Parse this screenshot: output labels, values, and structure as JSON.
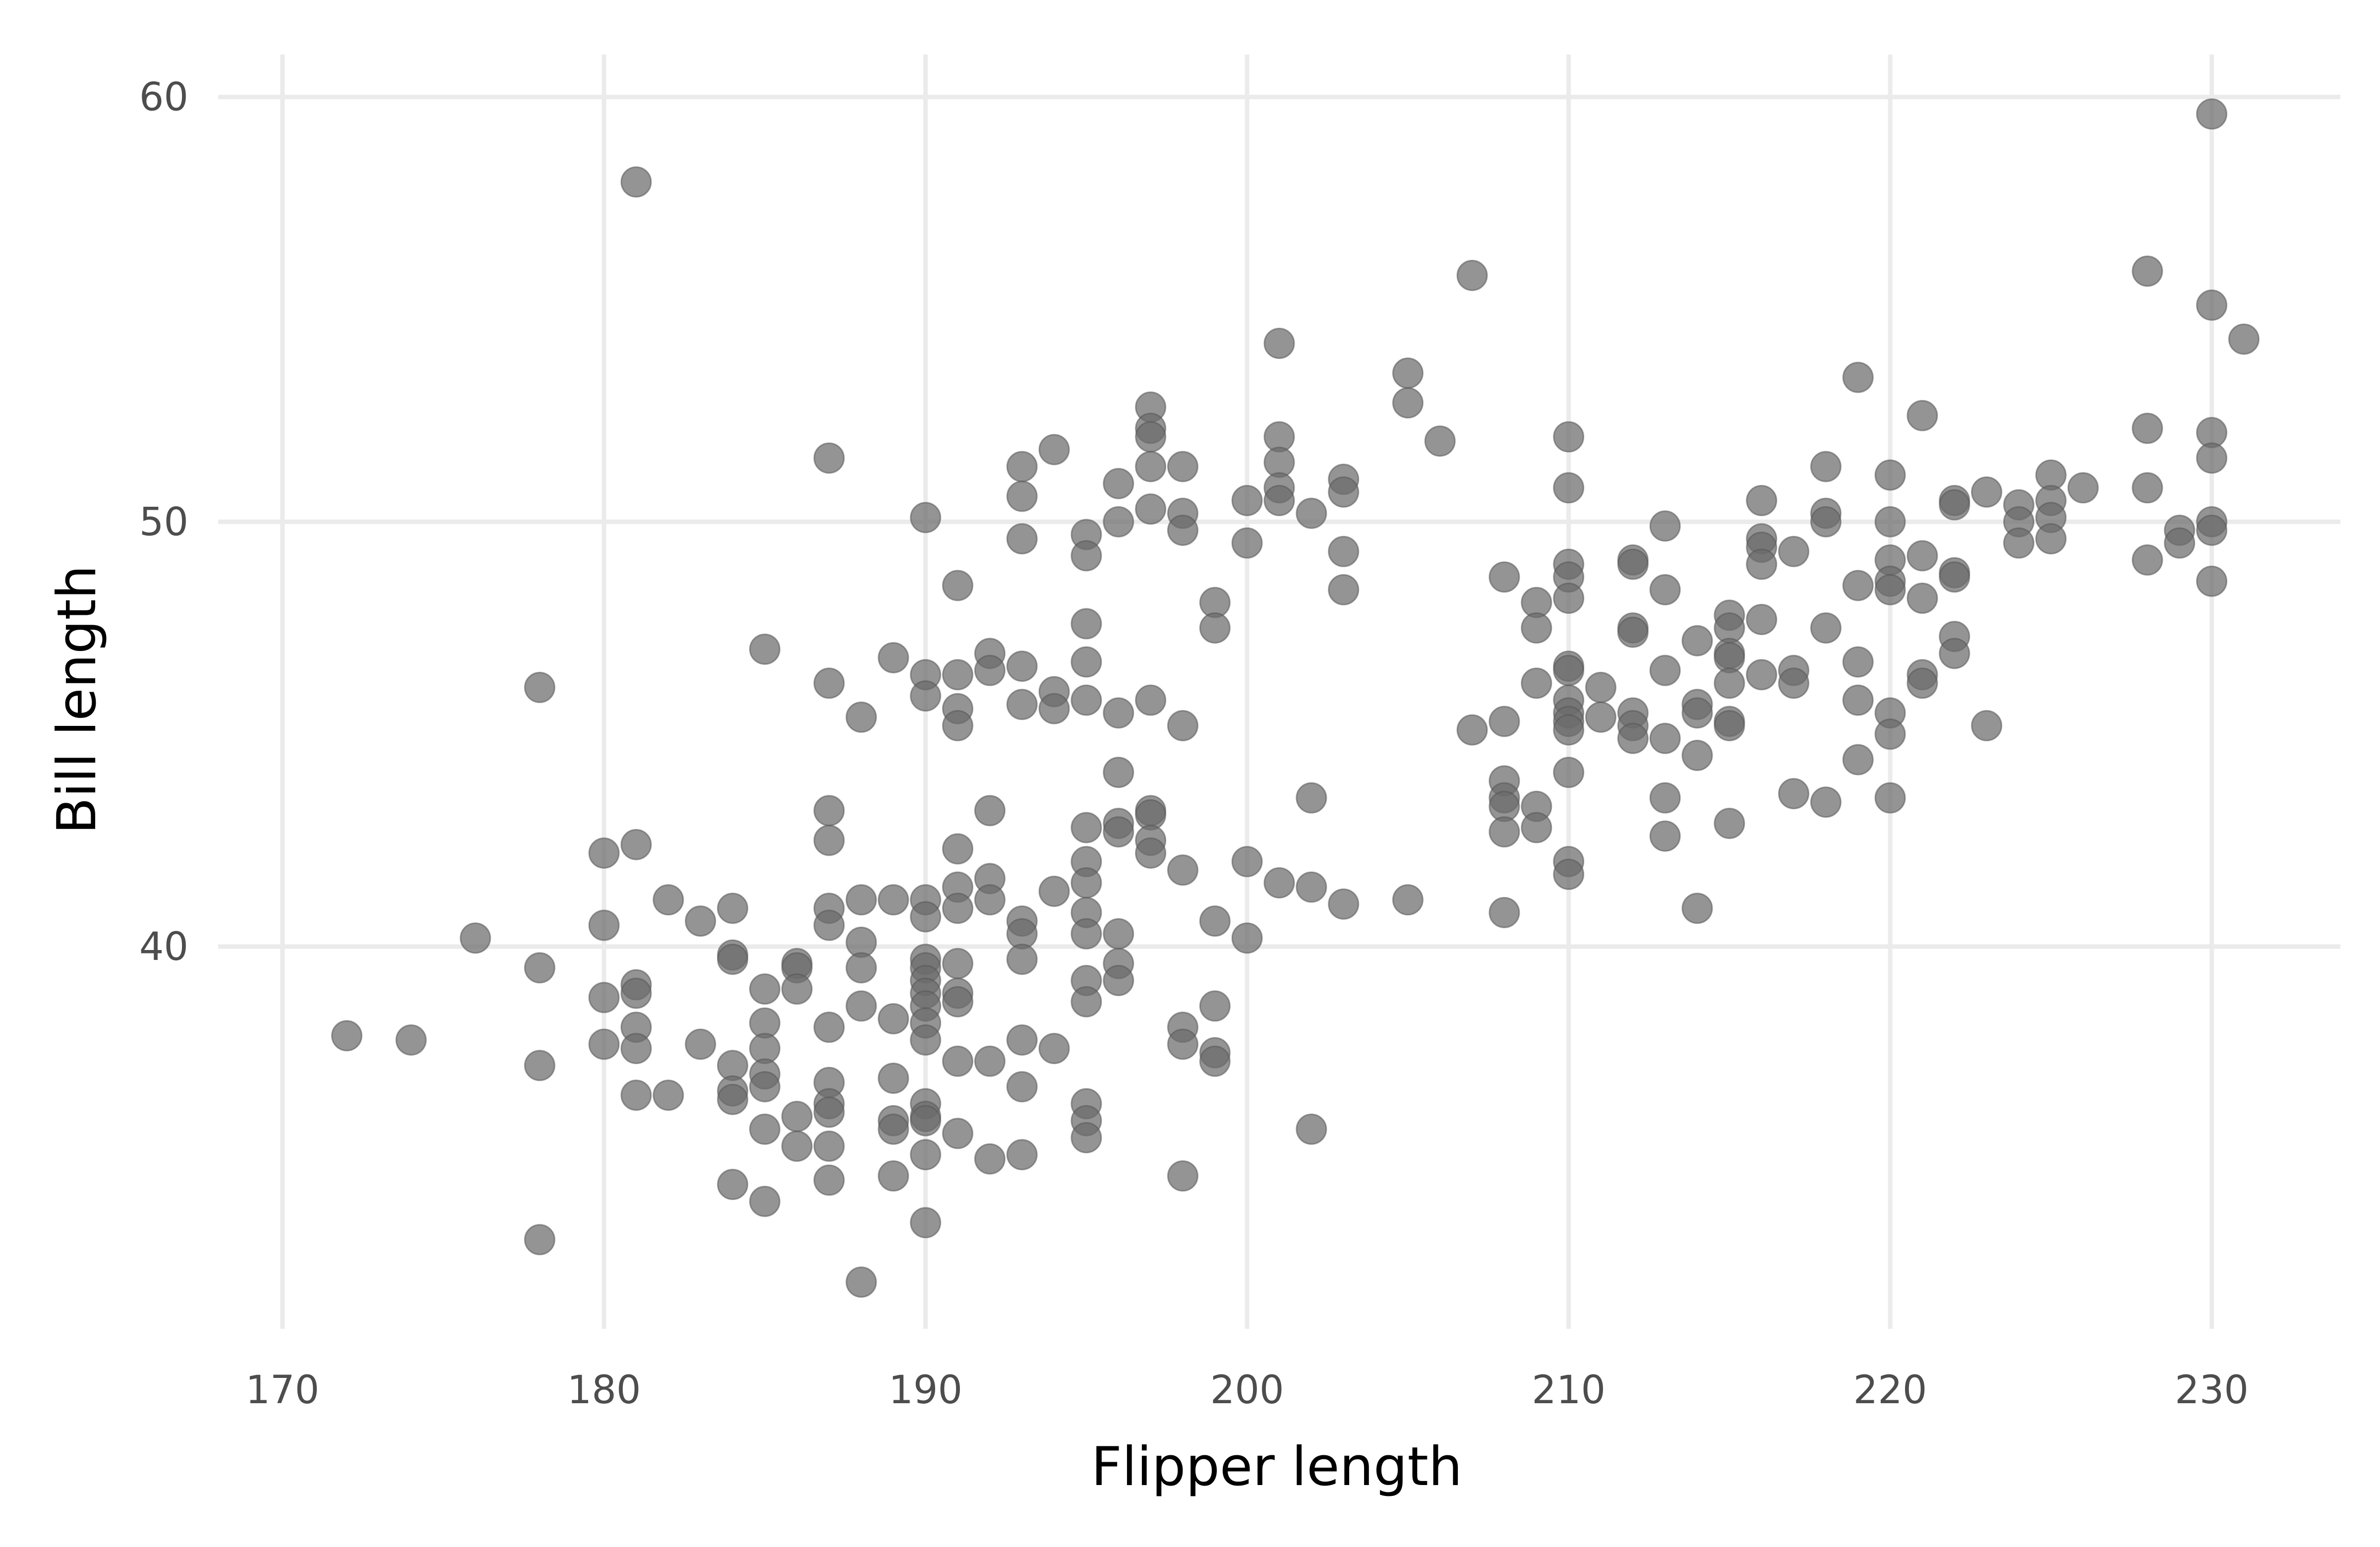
{
  "chart_data": {
    "type": "scatter",
    "title": "",
    "xlabel": "Flipper length",
    "ylabel": "Bill length",
    "xlim": [
      168,
      234
    ],
    "ylim": [
      31,
      61
    ],
    "x_ticks": [
      170,
      180,
      190,
      200,
      210,
      220,
      230
    ],
    "y_ticks": [
      40,
      50,
      60
    ],
    "grid": true,
    "legend": "none",
    "colors": {
      "point": "#6b6b6b",
      "grid": "#ebebeb",
      "background": "#ffffff"
    },
    "points": [
      [
        172,
        37.9
      ],
      [
        174,
        37.8
      ],
      [
        176,
        40.2
      ],
      [
        178,
        46.1
      ],
      [
        178,
        39.5
      ],
      [
        178,
        37.2
      ],
      [
        178,
        33.1
      ],
      [
        180,
        42.2
      ],
      [
        180,
        40.5
      ],
      [
        180,
        38.8
      ],
      [
        180,
        37.7
      ],
      [
        181,
        58.0
      ],
      [
        181,
        42.4
      ],
      [
        181,
        39.1
      ],
      [
        181,
        38.9
      ],
      [
        181,
        38.1
      ],
      [
        181,
        37.6
      ],
      [
        181,
        36.5
      ],
      [
        182,
        41.1
      ],
      [
        182,
        36.5
      ],
      [
        183,
        40.6
      ],
      [
        183,
        37.7
      ],
      [
        184,
        40.9
      ],
      [
        184,
        39.8
      ],
      [
        184,
        39.7
      ],
      [
        184,
        37.2
      ],
      [
        184,
        36.6
      ],
      [
        184,
        36.4
      ],
      [
        184,
        34.4
      ],
      [
        185,
        47.0
      ],
      [
        185,
        39.0
      ],
      [
        185,
        38.2
      ],
      [
        185,
        37.6
      ],
      [
        185,
        37.0
      ],
      [
        185,
        36.7
      ],
      [
        185,
        35.7
      ],
      [
        185,
        34.0
      ],
      [
        186,
        39.6
      ],
      [
        186,
        39.5
      ],
      [
        186,
        39.0
      ],
      [
        186,
        36.0
      ],
      [
        186,
        35.3
      ],
      [
        187,
        51.5
      ],
      [
        187,
        46.2
      ],
      [
        187,
        43.2
      ],
      [
        187,
        42.5
      ],
      [
        187,
        40.9
      ],
      [
        187,
        40.5
      ],
      [
        187,
        38.1
      ],
      [
        187,
        36.8
      ],
      [
        187,
        36.3
      ],
      [
        187,
        36.1
      ],
      [
        187,
        35.3
      ],
      [
        187,
        34.5
      ],
      [
        188,
        45.4
      ],
      [
        188,
        41.1
      ],
      [
        188,
        40.1
      ],
      [
        188,
        39.5
      ],
      [
        188,
        38.6
      ],
      [
        188,
        32.1
      ],
      [
        189,
        46.8
      ],
      [
        189,
        41.1
      ],
      [
        189,
        38.3
      ],
      [
        189,
        36.9
      ],
      [
        189,
        35.9
      ],
      [
        189,
        35.7
      ],
      [
        189,
        34.6
      ],
      [
        190,
        50.1
      ],
      [
        190,
        46.4
      ],
      [
        190,
        45.9
      ],
      [
        190,
        41.1
      ],
      [
        190,
        40.7
      ],
      [
        190,
        39.7
      ],
      [
        190,
        39.5
      ],
      [
        190,
        39.2
      ],
      [
        190,
        38.9
      ],
      [
        190,
        38.6
      ],
      [
        190,
        38.2
      ],
      [
        190,
        37.8
      ],
      [
        190,
        36.3
      ],
      [
        190,
        36.0
      ],
      [
        190,
        35.9
      ],
      [
        190,
        35.1
      ],
      [
        190,
        33.5
      ],
      [
        191,
        48.5
      ],
      [
        191,
        46.4
      ],
      [
        191,
        45.6
      ],
      [
        191,
        45.2
      ],
      [
        191,
        42.3
      ],
      [
        191,
        41.4
      ],
      [
        191,
        40.9
      ],
      [
        191,
        39.6
      ],
      [
        191,
        38.9
      ],
      [
        191,
        38.7
      ],
      [
        191,
        37.3
      ],
      [
        191,
        35.6
      ],
      [
        192,
        46.9
      ],
      [
        192,
        46.5
      ],
      [
        192,
        43.2
      ],
      [
        192,
        41.6
      ],
      [
        192,
        41.1
      ],
      [
        192,
        37.3
      ],
      [
        192,
        35.0
      ],
      [
        193,
        51.3
      ],
      [
        193,
        50.6
      ],
      [
        193,
        49.6
      ],
      [
        193,
        46.6
      ],
      [
        193,
        45.7
      ],
      [
        193,
        40.6
      ],
      [
        193,
        40.3
      ],
      [
        193,
        39.7
      ],
      [
        193,
        37.8
      ],
      [
        193,
        36.7
      ],
      [
        193,
        35.1
      ],
      [
        194,
        51.7
      ],
      [
        194,
        46.0
      ],
      [
        194,
        45.6
      ],
      [
        194,
        41.3
      ],
      [
        194,
        37.6
      ],
      [
        195,
        49.7
      ],
      [
        195,
        49.2
      ],
      [
        195,
        47.6
      ],
      [
        195,
        46.7
      ],
      [
        195,
        45.8
      ],
      [
        195,
        42.8
      ],
      [
        195,
        42.0
      ],
      [
        195,
        41.5
      ],
      [
        195,
        40.8
      ],
      [
        195,
        40.3
      ],
      [
        195,
        39.2
      ],
      [
        195,
        38.7
      ],
      [
        195,
        36.3
      ],
      [
        195,
        35.9
      ],
      [
        195,
        35.5
      ],
      [
        196,
        50.9
      ],
      [
        196,
        50.0
      ],
      [
        196,
        45.5
      ],
      [
        196,
        44.1
      ],
      [
        196,
        42.9
      ],
      [
        196,
        42.7
      ],
      [
        196,
        40.3
      ],
      [
        196,
        39.6
      ],
      [
        196,
        39.2
      ],
      [
        197,
        52.7
      ],
      [
        197,
        52.2
      ],
      [
        197,
        52.0
      ],
      [
        197,
        51.3
      ],
      [
        197,
        50.3
      ],
      [
        197,
        45.8
      ],
      [
        197,
        43.2
      ],
      [
        197,
        43.1
      ],
      [
        197,
        42.5
      ],
      [
        197,
        42.2
      ],
      [
        198,
        51.3
      ],
      [
        198,
        50.2
      ],
      [
        198,
        49.8
      ],
      [
        198,
        45.2
      ],
      [
        198,
        41.8
      ],
      [
        198,
        38.1
      ],
      [
        198,
        37.7
      ],
      [
        198,
        34.6
      ],
      [
        199,
        48.1
      ],
      [
        199,
        47.5
      ],
      [
        199,
        40.6
      ],
      [
        199,
        38.6
      ],
      [
        199,
        37.5
      ],
      [
        199,
        37.3
      ],
      [
        200,
        50.5
      ],
      [
        200,
        49.5
      ],
      [
        200,
        42.0
      ],
      [
        200,
        40.2
      ],
      [
        201,
        54.2
      ],
      [
        201,
        52.0
      ],
      [
        201,
        51.4
      ],
      [
        201,
        50.8
      ],
      [
        201,
        50.5
      ],
      [
        201,
        41.5
      ],
      [
        202,
        50.2
      ],
      [
        202,
        43.5
      ],
      [
        202,
        41.4
      ],
      [
        202,
        35.7
      ],
      [
        203,
        51.0
      ],
      [
        203,
        50.7
      ],
      [
        203,
        49.3
      ],
      [
        203,
        48.4
      ],
      [
        203,
        41.0
      ],
      [
        205,
        53.5
      ],
      [
        205,
        52.8
      ],
      [
        205,
        41.1
      ],
      [
        206,
        51.9
      ],
      [
        207,
        55.8
      ],
      [
        207,
        45.1
      ],
      [
        208,
        48.7
      ],
      [
        208,
        45.3
      ],
      [
        208,
        43.9
      ],
      [
        208,
        43.5
      ],
      [
        208,
        43.3
      ],
      [
        208,
        42.7
      ],
      [
        208,
        40.8
      ],
      [
        209,
        48.1
      ],
      [
        209,
        47.5
      ],
      [
        209,
        46.2
      ],
      [
        209,
        43.3
      ],
      [
        209,
        42.8
      ],
      [
        210,
        52.0
      ],
      [
        210,
        50.8
      ],
      [
        210,
        49.0
      ],
      [
        210,
        48.7
      ],
      [
        210,
        48.2
      ],
      [
        210,
        46.6
      ],
      [
        210,
        46.5
      ],
      [
        210,
        45.8
      ],
      [
        210,
        45.5
      ],
      [
        210,
        45.3
      ],
      [
        210,
        45.1
      ],
      [
        210,
        44.1
      ],
      [
        210,
        42.0
      ],
      [
        210,
        41.7
      ],
      [
        211,
        46.1
      ],
      [
        211,
        45.4
      ],
      [
        212,
        49.1
      ],
      [
        212,
        49.0
      ],
      [
        212,
        47.5
      ],
      [
        212,
        47.4
      ],
      [
        212,
        45.5
      ],
      [
        212,
        45.2
      ],
      [
        212,
        44.9
      ],
      [
        213,
        49.9
      ],
      [
        213,
        48.4
      ],
      [
        213,
        46.5
      ],
      [
        213,
        44.9
      ],
      [
        213,
        43.5
      ],
      [
        213,
        42.6
      ],
      [
        214,
        47.2
      ],
      [
        214,
        45.7
      ],
      [
        214,
        45.5
      ],
      [
        214,
        44.5
      ],
      [
        214,
        40.9
      ],
      [
        215,
        47.8
      ],
      [
        215,
        47.5
      ],
      [
        215,
        46.9
      ],
      [
        215,
        46.8
      ],
      [
        215,
        46.2
      ],
      [
        215,
        45.3
      ],
      [
        215,
        45.2
      ],
      [
        215,
        42.9
      ],
      [
        216,
        50.5
      ],
      [
        216,
        49.6
      ],
      [
        216,
        49.4
      ],
      [
        216,
        49.0
      ],
      [
        216,
        47.7
      ],
      [
        216,
        46.4
      ],
      [
        217,
        49.3
      ],
      [
        217,
        46.5
      ],
      [
        217,
        46.2
      ],
      [
        217,
        43.6
      ],
      [
        218,
        51.3
      ],
      [
        218,
        50.2
      ],
      [
        218,
        50.0
      ],
      [
        218,
        47.5
      ],
      [
        218,
        43.4
      ],
      [
        219,
        53.4
      ],
      [
        219,
        48.5
      ],
      [
        219,
        46.7
      ],
      [
        219,
        45.8
      ],
      [
        219,
        44.4
      ],
      [
        220,
        51.1
      ],
      [
        220,
        50.0
      ],
      [
        220,
        49.1
      ],
      [
        220,
        48.6
      ],
      [
        220,
        48.4
      ],
      [
        220,
        45.5
      ],
      [
        220,
        45.0
      ],
      [
        220,
        43.5
      ],
      [
        221,
        52.5
      ],
      [
        221,
        49.2
      ],
      [
        221,
        48.2
      ],
      [
        221,
        46.4
      ],
      [
        221,
        46.2
      ],
      [
        222,
        50.5
      ],
      [
        222,
        50.4
      ],
      [
        222,
        48.8
      ],
      [
        222,
        48.7
      ],
      [
        222,
        47.3
      ],
      [
        222,
        46.9
      ],
      [
        223,
        50.7
      ],
      [
        223,
        45.2
      ],
      [
        224,
        50.4
      ],
      [
        224,
        50.0
      ],
      [
        224,
        49.5
      ],
      [
        225,
        51.1
      ],
      [
        225,
        50.5
      ],
      [
        225,
        50.1
      ],
      [
        225,
        49.6
      ],
      [
        226,
        50.8
      ],
      [
        228,
        55.9
      ],
      [
        228,
        52.2
      ],
      [
        228,
        50.8
      ],
      [
        228,
        49.1
      ],
      [
        229,
        49.8
      ],
      [
        229,
        49.5
      ],
      [
        230,
        59.6
      ],
      [
        230,
        55.1
      ],
      [
        230,
        52.1
      ],
      [
        230,
        51.5
      ],
      [
        230,
        50.0
      ],
      [
        230,
        49.8
      ],
      [
        230,
        48.6
      ],
      [
        231,
        54.3
      ]
    ]
  }
}
